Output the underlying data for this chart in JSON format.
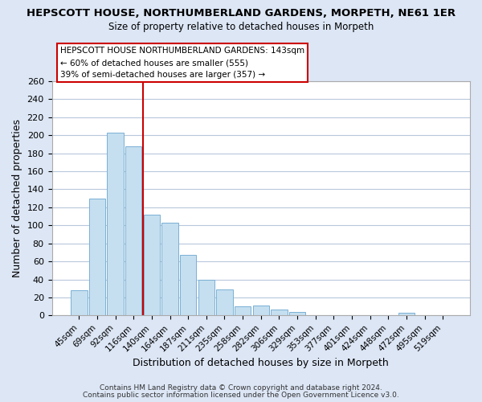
{
  "title": "HEPSCOTT HOUSE, NORTHUMBERLAND GARDENS, MORPETH, NE61 1ER",
  "subtitle": "Size of property relative to detached houses in Morpeth",
  "xlabel": "Distribution of detached houses by size in Morpeth",
  "ylabel": "Number of detached properties",
  "categories": [
    "45sqm",
    "69sqm",
    "92sqm",
    "116sqm",
    "140sqm",
    "164sqm",
    "187sqm",
    "211sqm",
    "235sqm",
    "258sqm",
    "282sqm",
    "306sqm",
    "329sqm",
    "353sqm",
    "377sqm",
    "401sqm",
    "424sqm",
    "448sqm",
    "472sqm",
    "495sqm",
    "519sqm"
  ],
  "values": [
    28,
    130,
    203,
    188,
    112,
    103,
    67,
    40,
    29,
    10,
    11,
    7,
    4,
    0,
    0,
    0,
    0,
    0,
    3,
    0,
    0
  ],
  "bar_color": "#c5dff0",
  "bar_edge_color": "#7ab0d4",
  "vline_color": "#cc0000",
  "vline_x": 4,
  "annotation_title": "HEPSCOTT HOUSE NORTHUMBERLAND GARDENS: 143sqm",
  "annotation_line1": "← 60% of detached houses are smaller (555)",
  "annotation_line2": "39% of semi-detached houses are larger (357) →",
  "ylim": [
    0,
    260
  ],
  "yticks": [
    0,
    20,
    40,
    60,
    80,
    100,
    120,
    140,
    160,
    180,
    200,
    220,
    240,
    260
  ],
  "footer1": "Contains HM Land Registry data © Crown copyright and database right 2024.",
  "footer2": "Contains public sector information licensed under the Open Government Licence v3.0.",
  "bg_color": "#dce6f5",
  "plot_bg_color": "#ffffff",
  "grid_color": "#b8c8dc"
}
